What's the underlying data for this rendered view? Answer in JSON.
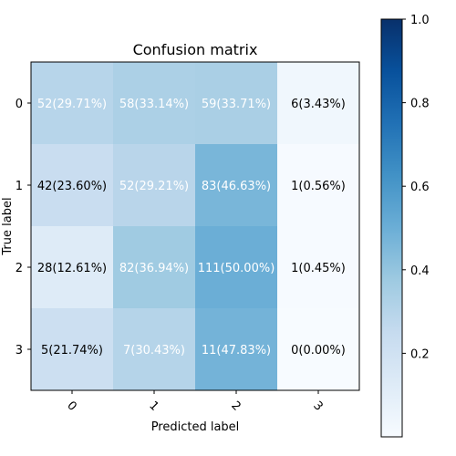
{
  "chart_data": {
    "type": "heatmap",
    "title": "Confusion matrix",
    "xlabel": "Predicted label",
    "ylabel": "True label",
    "x_tick_labels": [
      "0",
      "1",
      "2",
      "3"
    ],
    "y_tick_labels": [
      "0",
      "1",
      "2",
      "3"
    ],
    "cell_labels": [
      [
        "52(29.71%)",
        "58(33.14%)",
        "59(33.71%)",
        "6(3.43%)"
      ],
      [
        "42(23.60%)",
        "52(29.21%)",
        "83(46.63%)",
        "1(0.56%)"
      ],
      [
        "28(12.61%)",
        "82(36.94%)",
        "111(50.00%)",
        "1(0.45%)"
      ],
      [
        "5(21.74%)",
        "7(30.43%)",
        "11(47.83%)",
        "0(0.00%)"
      ]
    ],
    "cell_values": [
      [
        0.2971,
        0.3314,
        0.3371,
        0.0343
      ],
      [
        0.236,
        0.2921,
        0.4663,
        0.0056
      ],
      [
        0.1261,
        0.3694,
        0.5,
        0.0045
      ],
      [
        0.2174,
        0.3043,
        0.4783,
        0.0
      ]
    ],
    "colorbar": {
      "colormap": "Blues",
      "range": [
        0,
        1.0
      ],
      "tick_values": [
        0.2,
        0.4,
        0.6,
        0.8,
        1.0
      ],
      "tick_labels": [
        "0.2",
        "0.4",
        "0.6",
        "0.8",
        "1.0"
      ]
    },
    "text_color_light": "#ffffff",
    "text_color_dark": "#000000"
  }
}
